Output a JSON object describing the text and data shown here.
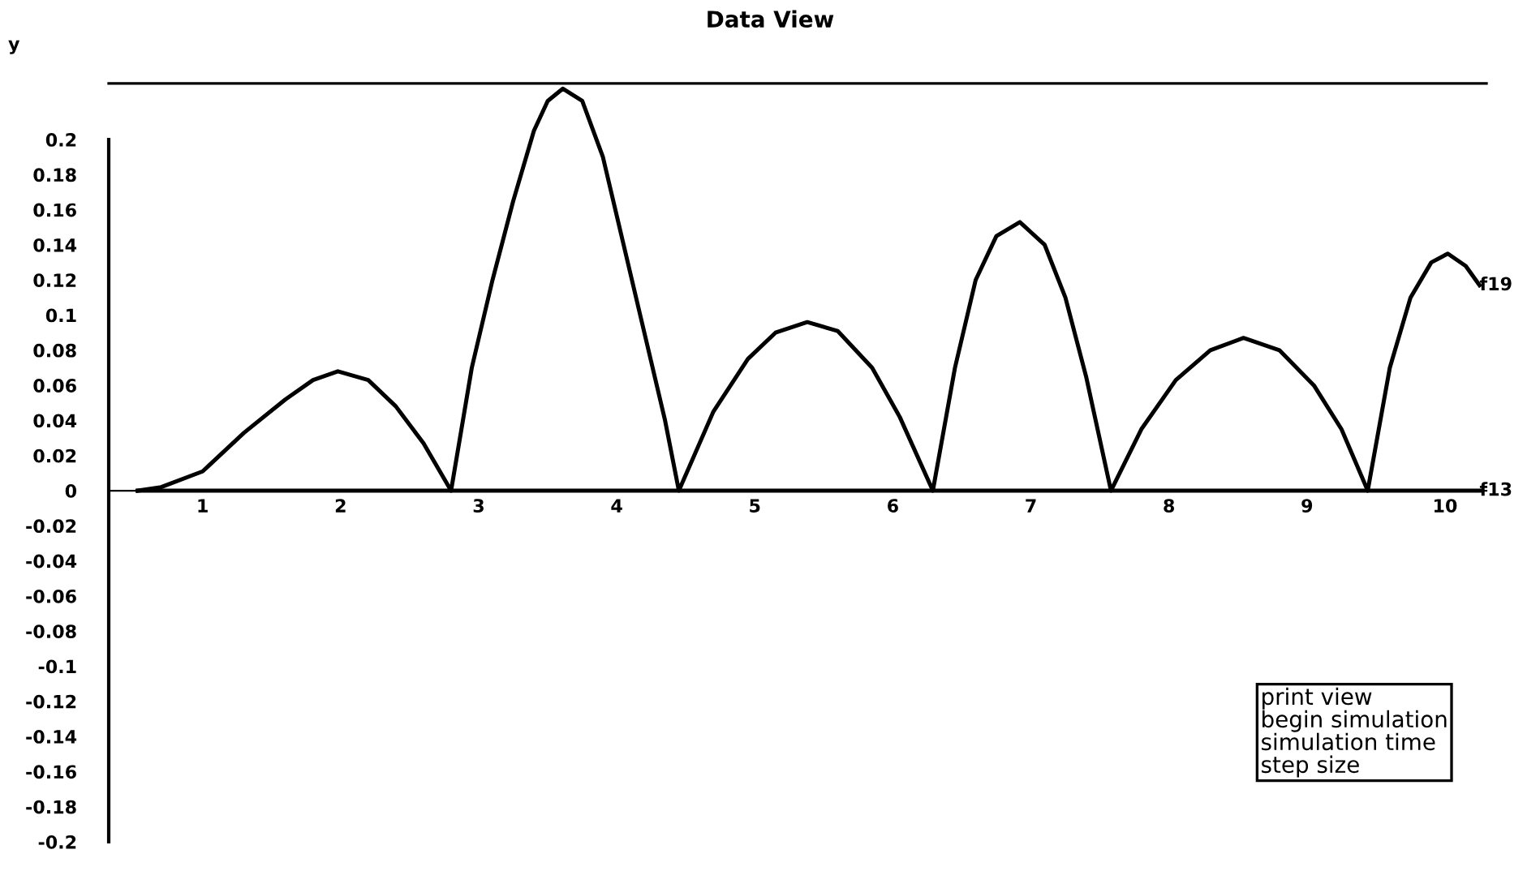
{
  "chart_data": {
    "type": "line",
    "title": "Data View",
    "ylabel": "y",
    "xlim": [
      0.32,
      10.3
    ],
    "ylim": [
      -0.2,
      0.232
    ],
    "xticks": [
      1,
      2,
      3,
      4,
      5,
      6,
      7,
      8,
      9,
      10
    ],
    "yticks": [
      {
        "value": 0.2,
        "label": "0.2"
      },
      {
        "value": 0.18,
        "label": "0.18"
      },
      {
        "value": 0.16,
        "label": "0.16"
      },
      {
        "value": 0.14,
        "label": "0.14"
      },
      {
        "value": 0.12,
        "label": "0.12"
      },
      {
        "value": 0.1,
        "label": "0.1"
      },
      {
        "value": 0.08,
        "label": "0.08"
      },
      {
        "value": 0.06,
        "label": "0.06"
      },
      {
        "value": 0.04,
        "label": "0.04"
      },
      {
        "value": 0.02,
        "label": "0.02"
      },
      0,
      {
        "value": -0.02,
        "label": "-0.02"
      },
      {
        "value": -0.04,
        "label": "-0.04"
      },
      {
        "value": -0.06,
        "label": "-0.06"
      },
      {
        "value": -0.08,
        "label": "-0.08"
      },
      {
        "value": -0.1,
        "label": "-0.1"
      },
      {
        "value": -0.12,
        "label": "-0.12"
      },
      {
        "value": -0.14,
        "label": "-0.14"
      },
      {
        "value": -0.16,
        "label": "-0.16"
      },
      {
        "value": -0.18,
        "label": "-0.18"
      },
      {
        "value": -0.2,
        "label": "-0.2"
      }
    ],
    "grid": false,
    "legend": false,
    "marker": "none",
    "line_style": "solid",
    "series": [
      {
        "name": "f19",
        "color": "#000000",
        "x": [
          0.53,
          0.7,
          1.0,
          1.3,
          1.6,
          1.8,
          1.98,
          2.2,
          2.4,
          2.6,
          2.8,
          2.95,
          3.1,
          3.25,
          3.4,
          3.5,
          3.61,
          3.75,
          3.9,
          4.05,
          4.2,
          4.35,
          4.45,
          4.7,
          4.95,
          5.15,
          5.38,
          5.6,
          5.85,
          6.05,
          6.29,
          6.45,
          6.6,
          6.75,
          6.92,
          7.1,
          7.25,
          7.4,
          7.58,
          7.8,
          8.05,
          8.3,
          8.54,
          8.8,
          9.05,
          9.25,
          9.44,
          9.6,
          9.75,
          9.9,
          10.02,
          10.15,
          10.25
        ],
        "values": [
          0,
          0.002,
          0.011,
          0.033,
          0.052,
          0.063,
          0.068,
          0.063,
          0.048,
          0.027,
          0,
          0.07,
          0.12,
          0.165,
          0.205,
          0.222,
          0.229,
          0.222,
          0.19,
          0.14,
          0.09,
          0.04,
          0,
          0.045,
          0.075,
          0.09,
          0.096,
          0.091,
          0.07,
          0.042,
          0,
          0.07,
          0.12,
          0.145,
          0.153,
          0.14,
          0.11,
          0.065,
          0,
          0.035,
          0.063,
          0.08,
          0.087,
          0.08,
          0.06,
          0.035,
          0,
          0.07,
          0.11,
          0.13,
          0.135,
          0.128,
          0.117
        ]
      },
      {
        "name": "f13",
        "color": "#000000",
        "x": [
          0.53,
          10.25
        ],
        "values": [
          0,
          0
        ]
      }
    ],
    "annotations": [
      "print view",
      "begin simulation",
      "simulation time",
      "step size"
    ]
  }
}
